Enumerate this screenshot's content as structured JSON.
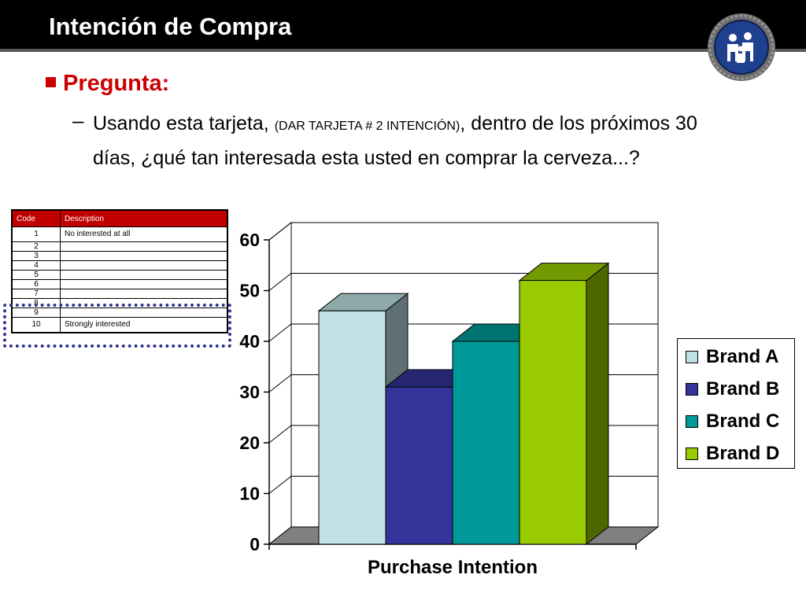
{
  "slide": {
    "title": "Intención de Compra",
    "question_heading": "Pregunta:",
    "question_dash": "–",
    "question_text_a": "Usando esta tarjeta, ",
    "question_text_small": "(DAR TARJETA # 2 INTENCIÓN)",
    "question_text_b": ", dentro de los próximos 30 días, ¿qué tan interesada esta usted en comprar la cerveza...?",
    "logo_icon": "family-icon"
  },
  "code_table": {
    "headers": [
      "Code",
      "Description"
    ],
    "rows": [
      {
        "code": "1",
        "desc": "No interested at all"
      },
      {
        "code": "2",
        "desc": ""
      },
      {
        "code": "3",
        "desc": ""
      },
      {
        "code": "4",
        "desc": ""
      },
      {
        "code": "5",
        "desc": ""
      },
      {
        "code": "6",
        "desc": ""
      },
      {
        "code": "7",
        "desc": ""
      },
      {
        "code": "8",
        "desc": ""
      },
      {
        "code": "9",
        "desc": ""
      },
      {
        "code": "10",
        "desc": "Strongly interested"
      }
    ],
    "highlight_color": "#2e3192"
  },
  "chart_data": {
    "type": "bar",
    "categories": [
      "Purchase Intention"
    ],
    "xlabel": "Purchase Intention",
    "ylabel": "",
    "ylim": [
      0,
      60
    ],
    "yticks": [
      0,
      10,
      20,
      30,
      40,
      50,
      60
    ],
    "grid": true,
    "legend_position": "right",
    "series": [
      {
        "name": "Brand A",
        "values": [
          46
        ],
        "color": "#bfe1e4",
        "side": "#5f7072",
        "top": "#8fa9ab"
      },
      {
        "name": "Brand B",
        "values": [
          31
        ],
        "color": "#333399",
        "side": "#1a1a4d",
        "top": "#262673"
      },
      {
        "name": "Brand C",
        "values": [
          40
        ],
        "color": "#009999",
        "side": "#004d4d",
        "top": "#007373"
      },
      {
        "name": "Brand D",
        "values": [
          52
        ],
        "color": "#99cc00",
        "side": "#4d6600",
        "top": "#739900"
      }
    ]
  }
}
